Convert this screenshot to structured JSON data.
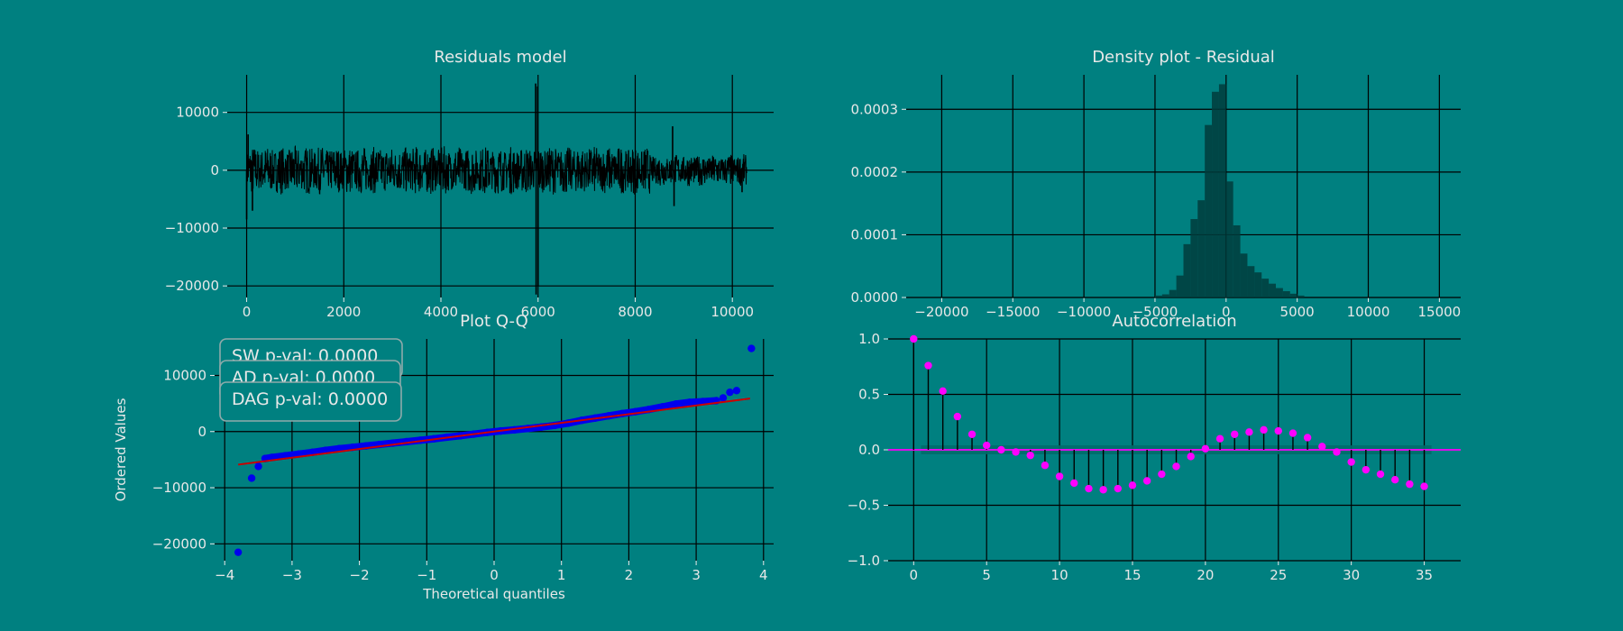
{
  "figure": {
    "background": "#008080",
    "text_color": "#e8e8e8",
    "grid_color": "#000000"
  },
  "chart_data": [
    {
      "id": "residuals",
      "type": "line",
      "title": "Residuals model",
      "xlabel": "",
      "ylabel": "",
      "xlim": [
        -400,
        10850
      ],
      "ylim": [
        -22000,
        16500
      ],
      "xticks": [
        0,
        2000,
        4000,
        6000,
        8000,
        10000
      ],
      "yticks": [
        -20000,
        -10000,
        0,
        10000
      ],
      "tick_labels_x": [
        "0",
        "2000",
        "4000",
        "6000",
        "8000",
        "10000"
      ],
      "tick_labels_y": [
        "−20000",
        "−10000",
        "0",
        "10000"
      ],
      "grid": true,
      "series": [
        {
          "color": "#000000",
          "n_points": 10300,
          "envelope": {
            "seasonal_period": 280,
            "base_amplitude": 4200,
            "late_amplitude": 2800,
            "late_start": 8300
          },
          "spikes": [
            {
              "x": 0,
              "y": -8500
            },
            {
              "x": 30,
              "y": 6200
            },
            {
              "x": 120,
              "y": -7000
            },
            {
              "x": 5950,
              "y": 15000
            },
            {
              "x": 5960,
              "y": -21500
            },
            {
              "x": 5990,
              "y": 14500
            },
            {
              "x": 6000,
              "y": -20000
            },
            {
              "x": 8770,
              "y": 7600
            },
            {
              "x": 8800,
              "y": -6200
            },
            {
              "x": 10200,
              "y": -3800
            }
          ]
        }
      ]
    },
    {
      "id": "density",
      "type": "bar",
      "title": "Density plot - Residual",
      "xlabel": "",
      "ylabel": "",
      "xlim": [
        -22500,
        16500
      ],
      "ylim": [
        0,
        0.000355
      ],
      "xticks": [
        -20000,
        -15000,
        -10000,
        -5000,
        0,
        5000,
        10000,
        15000
      ],
      "yticks": [
        0,
        0.0001,
        0.0002,
        0.0003
      ],
      "tick_labels_x": [
        "−20000",
        "−15000",
        "−10000",
        "−5000",
        "0",
        "5000",
        "10000",
        "15000"
      ],
      "tick_labels_y": [
        "0.0000",
        "0.0001",
        "0.0002",
        "0.0003"
      ],
      "grid": true,
      "bar_color": "#003c3c",
      "bin_width": 500,
      "bins": [
        {
          "x0": -5000,
          "value": 3e-06
        },
        {
          "x0": -4500,
          "value": 5e-06
        },
        {
          "x0": -4000,
          "value": 1.2e-05
        },
        {
          "x0": -3500,
          "value": 3.5e-05
        },
        {
          "x0": -3000,
          "value": 8.5e-05
        },
        {
          "x0": -2500,
          "value": 0.000125
        },
        {
          "x0": -2000,
          "value": 0.000155
        },
        {
          "x0": -1500,
          "value": 0.000275
        },
        {
          "x0": -1000,
          "value": 0.000328
        },
        {
          "x0": -500,
          "value": 0.00034
        },
        {
          "x0": 0,
          "value": 0.000185
        },
        {
          "x0": 500,
          "value": 0.000115
        },
        {
          "x0": 1000,
          "value": 7e-05
        },
        {
          "x0": 1500,
          "value": 5e-05
        },
        {
          "x0": 2000,
          "value": 4e-05
        },
        {
          "x0": 2500,
          "value": 3e-05
        },
        {
          "x0": 3000,
          "value": 2.2e-05
        },
        {
          "x0": 3500,
          "value": 1.5e-05
        },
        {
          "x0": 4000,
          "value": 1e-05
        },
        {
          "x0": 4500,
          "value": 6e-06
        },
        {
          "x0": 5000,
          "value": 3e-06
        }
      ]
    },
    {
      "id": "qq",
      "type": "scatter",
      "title": "Plot Q-Q",
      "xlabel": "Theoretical quantiles",
      "ylabel": "Ordered Values",
      "xlim": [
        -4.15,
        4.15
      ],
      "ylim": [
        -23000,
        16500
      ],
      "xticks": [
        -4,
        -3,
        -2,
        -1,
        0,
        1,
        2,
        3,
        4
      ],
      "yticks": [
        -20000,
        -10000,
        0,
        10000
      ],
      "tick_labels_x": [
        "−4",
        "−3",
        "−2",
        "−1",
        "0",
        "1",
        "2",
        "3",
        "4"
      ],
      "tick_labels_y": [
        "−20000",
        "−10000",
        "0",
        "10000"
      ],
      "grid": true,
      "point_color": "#0000ee",
      "line_color": "#cc0000",
      "fit_line": {
        "slope": 1550,
        "intercept": 0,
        "x_range": [
          -3.8,
          3.8
        ]
      },
      "points": [
        {
          "x": -3.8,
          "y": -21500
        },
        {
          "x": -3.6,
          "y": -8300
        },
        {
          "x": -3.5,
          "y": -6200
        },
        {
          "x": -3.4,
          "y": -4800
        },
        {
          "x": -3.3,
          "y": -4600
        },
        {
          "x": -3.1,
          "y": -4300
        },
        {
          "x": -2.9,
          "y": -4000
        },
        {
          "x": -2.7,
          "y": -3700
        },
        {
          "x": -2.5,
          "y": -3350
        },
        {
          "x": -2.3,
          "y": -3050
        },
        {
          "x": -2.1,
          "y": -2800
        },
        {
          "x": -1.9,
          "y": -2550
        },
        {
          "x": -1.7,
          "y": -2300
        },
        {
          "x": -1.5,
          "y": -2050
        },
        {
          "x": -1.3,
          "y": -1800
        },
        {
          "x": -1.1,
          "y": -1550
        },
        {
          "x": -0.9,
          "y": -1300
        },
        {
          "x": -0.7,
          "y": -1000
        },
        {
          "x": -0.5,
          "y": -750
        },
        {
          "x": -0.3,
          "y": -450
        },
        {
          "x": -0.1,
          "y": -150
        },
        {
          "x": 0.1,
          "y": 100
        },
        {
          "x": 0.3,
          "y": 300
        },
        {
          "x": 0.5,
          "y": 550
        },
        {
          "x": 0.7,
          "y": 800
        },
        {
          "x": 0.9,
          "y": 1100
        },
        {
          "x": 1.1,
          "y": 1500
        },
        {
          "x": 1.3,
          "y": 2000
        },
        {
          "x": 1.5,
          "y": 2400
        },
        {
          "x": 1.7,
          "y": 2800
        },
        {
          "x": 1.9,
          "y": 3200
        },
        {
          "x": 2.1,
          "y": 3550
        },
        {
          "x": 2.3,
          "y": 3950
        },
        {
          "x": 2.5,
          "y": 4400
        },
        {
          "x": 2.7,
          "y": 4900
        },
        {
          "x": 2.9,
          "y": 5200
        },
        {
          "x": 3.1,
          "y": 5350
        },
        {
          "x": 3.3,
          "y": 5500
        },
        {
          "x": 3.4,
          "y": 6000
        },
        {
          "x": 3.5,
          "y": 7000
        },
        {
          "x": 3.6,
          "y": 7300
        },
        {
          "x": 3.82,
          "y": 14800
        }
      ],
      "stats": [
        {
          "label": "SW p-val: 0.0000"
        },
        {
          "label": "AD p-val: 0.0000"
        },
        {
          "label": "DAG p-val: 0.0000"
        }
      ]
    },
    {
      "id": "acf",
      "type": "scatter",
      "title": "Autocorrelation",
      "xlabel": "",
      "ylabel": "",
      "xlim": [
        -1.75,
        37.5
      ],
      "ylim": [
        -1.0,
        1.0
      ],
      "xticks": [
        0,
        5,
        10,
        15,
        20,
        25,
        30,
        35
      ],
      "yticks": [
        -1.0,
        -0.5,
        0.0,
        0.5,
        1.0
      ],
      "tick_labels_x": [
        "0",
        "5",
        "10",
        "15",
        "20",
        "25",
        "30",
        "35"
      ],
      "tick_labels_y": [
        "−1.0",
        "−0.5",
        "0.0",
        "0.5",
        "1.0"
      ],
      "grid": true,
      "marker_color": "#ff00ff",
      "stem_color": "#000000",
      "zero_line_color": "#ff00ff",
      "confidence_band": 0.04,
      "band_color": "#006a6a",
      "lags": [
        0,
        1,
        2,
        3,
        4,
        5,
        6,
        7,
        8,
        9,
        10,
        11,
        12,
        13,
        14,
        15,
        16,
        17,
        18,
        19,
        20,
        21,
        22,
        23,
        24,
        25,
        26,
        27,
        28,
        29,
        30,
        31,
        32,
        33,
        34,
        35
      ],
      "values": [
        1.0,
        0.76,
        0.53,
        0.3,
        0.14,
        0.04,
        0.0,
        -0.02,
        -0.05,
        -0.14,
        -0.24,
        -0.3,
        -0.35,
        -0.36,
        -0.35,
        -0.32,
        -0.28,
        -0.22,
        -0.15,
        -0.06,
        0.01,
        0.1,
        0.14,
        0.16,
        0.18,
        0.17,
        0.15,
        0.11,
        0.03,
        -0.02,
        -0.11,
        -0.18,
        -0.22,
        -0.27,
        -0.31,
        -0.33
      ]
    }
  ]
}
